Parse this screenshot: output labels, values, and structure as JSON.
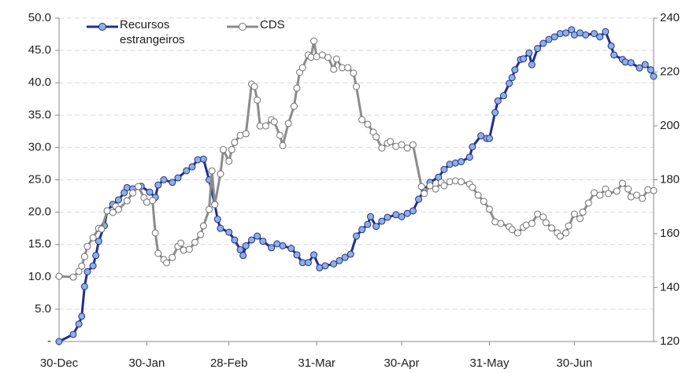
{
  "chart_data": {
    "type": "line",
    "xlim": [
      0,
      210
    ],
    "xticks": [
      {
        "value": 0,
        "label": "30-Dec"
      },
      {
        "value": 31,
        "label": "30-Jan"
      },
      {
        "value": 60,
        "label": "28-Feb"
      },
      {
        "value": 91,
        "label": "31-Mar"
      },
      {
        "value": 121,
        "label": "30-Apr"
      },
      {
        "value": 152,
        "label": "31-May"
      },
      {
        "value": 182,
        "label": "30-Jun"
      }
    ],
    "ylim": [
      0,
      50
    ],
    "yticks": [
      {
        "value": 0,
        "label": "-"
      },
      {
        "value": 5,
        "label": "5.0"
      },
      {
        "value": 10,
        "label": "10.0"
      },
      {
        "value": 15,
        "label": "15.0"
      },
      {
        "value": 20,
        "label": "20.0"
      },
      {
        "value": 25,
        "label": "25.0"
      },
      {
        "value": 30,
        "label": "30.0"
      },
      {
        "value": 35,
        "label": "35.0"
      },
      {
        "value": 40,
        "label": "40.0"
      },
      {
        "value": 45,
        "label": "45.0"
      },
      {
        "value": 50,
        "label": "50.0"
      }
    ],
    "y2lim": [
      120,
      240
    ],
    "y2ticks": [
      120,
      140,
      160,
      180,
      200,
      220,
      240
    ],
    "grid": true,
    "legend": "top-left",
    "series": [
      {
        "name": "Recursos estrangeiros",
        "color": "#1f2f8f",
        "marker_color": "#8fb0e0",
        "axis": "y",
        "x": [
          0,
          5,
          7,
          8,
          9,
          10,
          12,
          13,
          14,
          16,
          17,
          19,
          21,
          23,
          24,
          26,
          29,
          32,
          34,
          35,
          37,
          40,
          42,
          45,
          47,
          49,
          51,
          53,
          55,
          56,
          57,
          60,
          62,
          64,
          65,
          66,
          68,
          70,
          72,
          75,
          77,
          79,
          82,
          84,
          86,
          88,
          90,
          92,
          94,
          97,
          99,
          101,
          103,
          105,
          107,
          109,
          110,
          112,
          114,
          116,
          119,
          121,
          123,
          125,
          127,
          129,
          131,
          134,
          136,
          138,
          140,
          142,
          145,
          146,
          149,
          151,
          152,
          154,
          155,
          157,
          159,
          160,
          161,
          163,
          164,
          166,
          167,
          169,
          171,
          173,
          175,
          177,
          179,
          181,
          182,
          184,
          186,
          189,
          191,
          193,
          195,
          196,
          199,
          200,
          202,
          205,
          207,
          209,
          210
        ],
        "values": [
          0,
          1.1,
          2.7,
          3.9,
          8.5,
          10.8,
          11.7,
          13.3,
          15.5,
          17.9,
          20.2,
          21.2,
          21.9,
          23,
          23.8,
          23.6,
          24,
          23.1,
          22.3,
          24.2,
          25,
          24.6,
          25.3,
          26.4,
          27,
          28.1,
          28.2,
          25,
          21.2,
          18.9,
          17.5,
          16.9,
          15.7,
          14.2,
          13.3,
          14.8,
          15.7,
          16.3,
          15.5,
          14.5,
          15.1,
          14.8,
          14.4,
          13.4,
          12.2,
          12.2,
          13.4,
          11.4,
          11.7,
          12,
          12.5,
          13,
          13.5,
          16.3,
          17.3,
          18.1,
          19.3,
          17.8,
          18.6,
          19.2,
          19.6,
          19.3,
          19.8,
          20.2,
          22,
          23.4,
          24.6,
          25.4,
          26.6,
          27.4,
          27.6,
          27.8,
          28.5,
          30.1,
          31.8,
          31.4,
          31.4,
          35.4,
          37.2,
          38,
          39.9,
          40.8,
          42,
          43.6,
          43.7,
          44.6,
          42.8,
          45.3,
          46.1,
          46.7,
          47.1,
          47.6,
          47.7,
          48.2,
          47.4,
          47.7,
          47.4,
          47.6,
          47.1,
          47.9,
          45.7,
          44.3,
          43.6,
          43.2,
          43.1,
          42.3,
          42.8,
          42,
          41
        ]
      },
      {
        "name": "CDS",
        "color": "#8c8c8c",
        "marker_color": "#ffffff",
        "axis": "y2",
        "x": [
          0,
          5,
          7,
          8,
          9,
          10,
          12,
          14,
          15,
          17,
          19,
          20,
          21,
          24,
          26,
          28,
          30,
          31,
          33,
          34,
          35,
          37,
          38,
          40,
          42,
          43,
          44,
          46,
          48,
          50,
          51,
          53,
          54,
          55,
          57,
          58,
          60,
          61,
          62,
          64,
          66,
          68,
          69,
          70,
          71,
          73,
          75,
          76,
          78,
          79,
          81,
          83,
          84,
          85,
          86,
          88,
          89,
          90,
          91,
          93,
          95,
          97,
          98,
          100,
          102,
          104,
          105,
          107,
          109,
          111,
          112,
          114,
          116,
          117,
          119,
          121,
          123,
          125,
          128,
          129,
          131,
          133,
          135,
          136,
          138,
          140,
          142,
          145,
          146,
          148,
          150,
          152,
          154,
          156,
          159,
          160,
          162,
          164,
          165,
          167,
          169,
          171,
          172,
          174,
          176,
          177,
          179,
          180,
          182,
          184,
          185,
          187,
          189,
          191,
          193,
          194,
          197,
          199,
          201,
          202,
          204,
          206,
          208,
          210
        ],
        "values": [
          144.2,
          143.9,
          146,
          148,
          151.5,
          155.3,
          158.5,
          162,
          161.7,
          168.5,
          167.9,
          170.2,
          169,
          172.2,
          175.1,
          177.5,
          173.4,
          171.7,
          172.3,
          160.3,
          152.7,
          150.4,
          149.2,
          151.2,
          155.3,
          156.5,
          153.9,
          154.2,
          156.8,
          159.7,
          162.9,
          169,
          183.3,
          170.8,
          182.2,
          191.2,
          186.9,
          191.2,
          193.9,
          196.5,
          197.1,
          215.5,
          214.6,
          209.6,
          200,
          200,
          202.3,
          201.5,
          196.5,
          192.7,
          200.9,
          207.3,
          214,
          219.9,
          221.6,
          226.3,
          225.5,
          231.5,
          225.7,
          226.3,
          225.4,
          221,
          224.8,
          221.6,
          221.6,
          219.6,
          214.6,
          202.3,
          200.6,
          197.7,
          195.9,
          191.8,
          193.6,
          194.2,
          192.4,
          193,
          191.8,
          193,
          177.5,
          174.9,
          177.8,
          176.6,
          179,
          177.8,
          179.3,
          179.6,
          179.3,
          178.4,
          177.2,
          174.3,
          172,
          169.1,
          164.4,
          163.8,
          162.6,
          161.5,
          160.3,
          162.4,
          163.2,
          163.8,
          167.3,
          166.2,
          164.1,
          162.1,
          160.3,
          159.1,
          160.3,
          162.9,
          167.3,
          165.6,
          168,
          171.4,
          175.2,
          174.3,
          176.6,
          174.9,
          175.8,
          178.7,
          176.6,
          173.7,
          174.3,
          173.1,
          176.3,
          176
        ]
      }
    ]
  }
}
